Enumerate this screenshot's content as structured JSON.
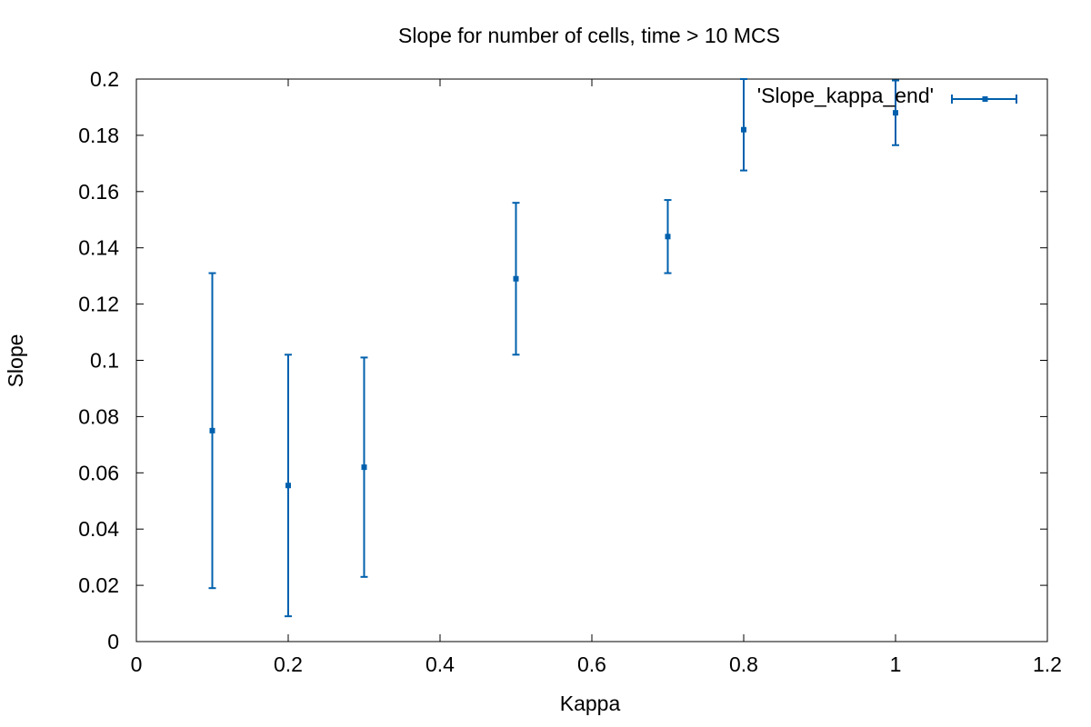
{
  "chart_data": {
    "type": "scatter",
    "title": "Slope for number of cells, time > 10 MCS",
    "xlabel": "Kappa",
    "ylabel": "Slope",
    "xlim": [
      0,
      1.2
    ],
    "ylim": [
      0,
      0.2
    ],
    "xticks": [
      "0",
      "0.2",
      "0.4",
      "0.6",
      "0.8",
      "1",
      "1.2"
    ],
    "xtick_values": [
      0,
      0.2,
      0.4,
      0.6,
      0.8,
      1.0,
      1.2
    ],
    "yticks": [
      "0",
      "0.02",
      "0.04",
      "0.06",
      "0.08",
      "0.1",
      "0.12",
      "0.14",
      "0.16",
      "0.18",
      "0.2"
    ],
    "ytick_values": [
      0,
      0.02,
      0.04,
      0.06,
      0.08,
      0.1,
      0.12,
      0.14,
      0.16,
      0.18,
      0.2
    ],
    "grid": false,
    "legend_position": "top-right",
    "series": [
      {
        "name": "'Slope_kappa_end'",
        "color": "#0060ad",
        "style": "points with y-error bars",
        "points": [
          {
            "x": 0.1,
            "y": 0.075,
            "ylow": 0.019,
            "yhigh": 0.131
          },
          {
            "x": 0.2,
            "y": 0.0555,
            "ylow": 0.009,
            "yhigh": 0.102
          },
          {
            "x": 0.3,
            "y": 0.062,
            "ylow": 0.023,
            "yhigh": 0.101
          },
          {
            "x": 0.5,
            "y": 0.129,
            "ylow": 0.102,
            "yhigh": 0.156
          },
          {
            "x": 0.7,
            "y": 0.144,
            "ylow": 0.131,
            "yhigh": 0.157
          },
          {
            "x": 0.8,
            "y": 0.182,
            "ylow": 0.1675,
            "yhigh": 0.2
          },
          {
            "x": 1.0,
            "y": 0.188,
            "ylow": 0.1765,
            "yhigh": 0.1995
          }
        ]
      }
    ]
  }
}
